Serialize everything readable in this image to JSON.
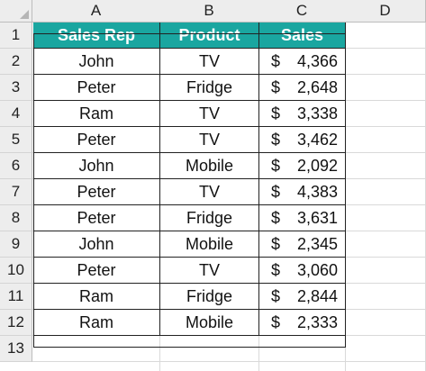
{
  "columns": [
    "A",
    "B",
    "C",
    "D"
  ],
  "rows": [
    "1",
    "2",
    "3",
    "4",
    "5",
    "6",
    "7",
    "8",
    "9",
    "10",
    "11",
    "12",
    "13"
  ],
  "table": {
    "headers": [
      "Sales Rep",
      "Product",
      "Sales"
    ],
    "currency_symbol": "$",
    "header_color": "#1aa6a0",
    "data": [
      {
        "rep": "John",
        "product": "TV",
        "sales": "4,366"
      },
      {
        "rep": "Peter",
        "product": "Fridge",
        "sales": "2,648"
      },
      {
        "rep": "Ram",
        "product": "TV",
        "sales": "3,338"
      },
      {
        "rep": "Peter",
        "product": "TV",
        "sales": "3,462"
      },
      {
        "rep": "John",
        "product": "Mobile",
        "sales": "2,092"
      },
      {
        "rep": "Peter",
        "product": "TV",
        "sales": "4,383"
      },
      {
        "rep": "Peter",
        "product": "Fridge",
        "sales": "3,631"
      },
      {
        "rep": "John",
        "product": "Mobile",
        "sales": "2,345"
      },
      {
        "rep": "Peter",
        "product": "TV",
        "sales": "3,060"
      },
      {
        "rep": "Ram",
        "product": "Fridge",
        "sales": "2,844"
      },
      {
        "rep": "Ram",
        "product": "Mobile",
        "sales": "2,333"
      }
    ]
  }
}
